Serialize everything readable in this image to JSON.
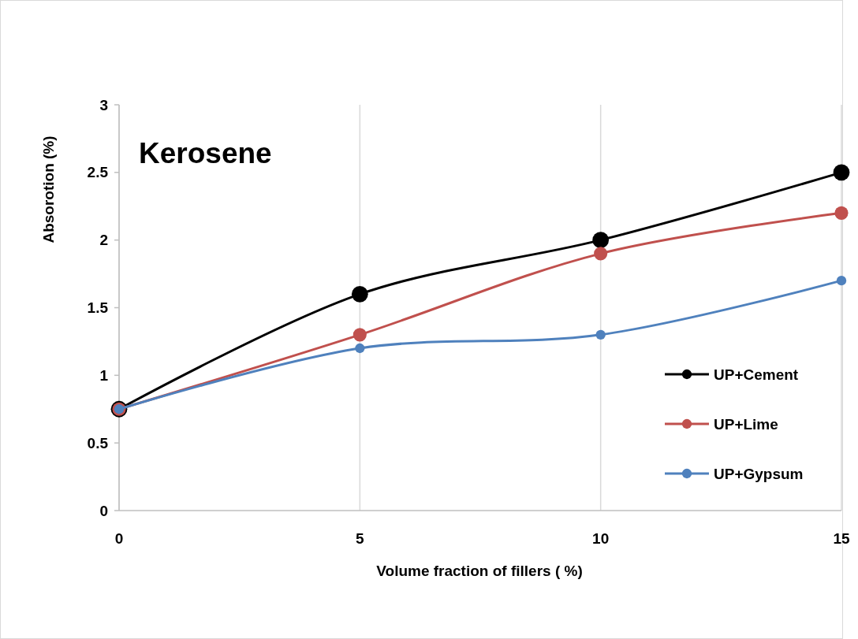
{
  "chart_data": {
    "type": "line",
    "title": "Kerosene",
    "xlabel": "Volume fraction of fillers ( %)",
    "ylabel": "Absorotion (%)",
    "x": [
      0,
      5,
      10,
      15
    ],
    "series": [
      {
        "name": "UP+Cement",
        "color": "#000000",
        "values": [
          0.75,
          1.6,
          2.0,
          2.5
        ]
      },
      {
        "name": "UP+Lime",
        "color": "#c0504d",
        "values": [
          0.75,
          1.3,
          1.9,
          2.2
        ]
      },
      {
        "name": "UP+Gypsum",
        "color": "#4f81bd",
        "values": [
          0.75,
          1.2,
          1.3,
          1.7
        ]
      }
    ],
    "xlim": [
      0,
      15
    ],
    "xticks": [
      0,
      5,
      10,
      15
    ],
    "ylim": [
      0,
      3
    ],
    "yticks": [
      0,
      0.5,
      1,
      1.5,
      2,
      2.5,
      3
    ],
    "grid": "x",
    "legend": "right",
    "marker": "circle",
    "line_style": "solid"
  }
}
